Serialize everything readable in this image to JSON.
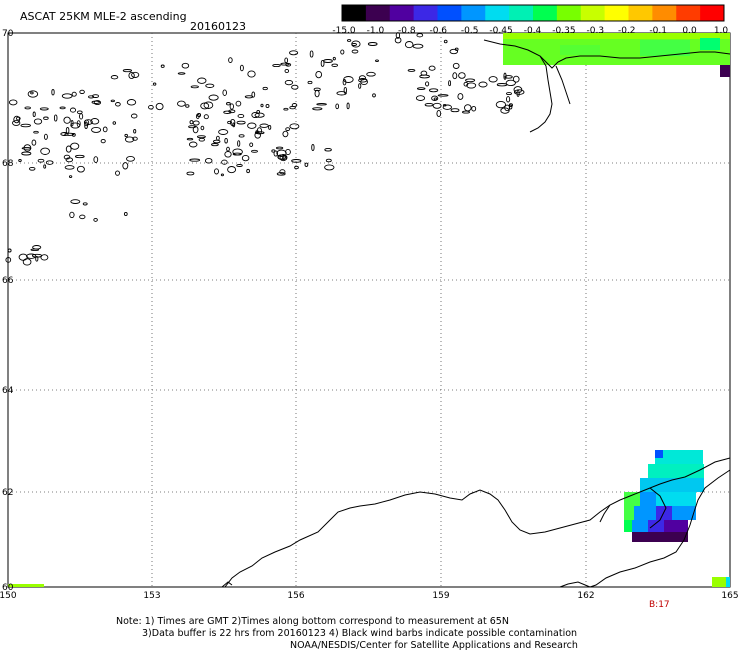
{
  "header": {
    "title": "ASCAT 25KM MLE-2 ascending",
    "date": "20160123"
  },
  "colorbar": {
    "labels": [
      "-15.0",
      "-1.0",
      "-0.8",
      "-0.6",
      "-0.5",
      "-0.45",
      "-0.4",
      "-0.35",
      "-0.3",
      "-0.2",
      "-0.1",
      "0.0",
      "1.0"
    ],
    "colors": [
      "#000000",
      "#3c0050",
      "#5000a0",
      "#3c28e6",
      "#0050ff",
      "#0096ff",
      "#00dcf0",
      "#00f0b4",
      "#00ff50",
      "#78ff00",
      "#c8ff00",
      "#ffff00",
      "#ffc800",
      "#ff8c00",
      "#ff3c00",
      "#ff0000"
    ]
  },
  "axes": {
    "lon_labels": [
      "150",
      "153",
      "156",
      "159",
      "162",
      "165"
    ],
    "lat_labels": [
      "70",
      "68",
      "66",
      "64",
      "62",
      "60"
    ]
  },
  "pass_label": "B:17",
  "footer": {
    "note_line1": "Note: 1) Times are GMT 2)Times along bottom correspond to measurement at 65N",
    "note_line2": "3)Data buffer is 22 hrs from 20160123 4) Black wind barbs indicate possible contamination",
    "credit": "NOAA/NESDIS/Center for Satellite Applications and Research"
  }
}
